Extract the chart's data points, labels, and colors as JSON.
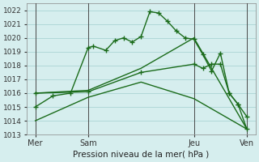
{
  "background_color": "#d6eeee",
  "grid_color": "#b0d8d8",
  "line_color": "#1a6b1a",
  "title": "Pression niveau de la mer( hPa )",
  "yticks": [
    1013,
    1014,
    1015,
    1016,
    1017,
    1018,
    1019,
    1020,
    1021,
    1022
  ],
  "ylim": [
    1013,
    1022.5
  ],
  "xtick_labels": [
    "Mer",
    "Sam",
    "Jeu",
    "Ven"
  ],
  "xtick_positions": [
    0,
    3,
    9,
    12
  ],
  "series1_x": [
    0,
    1,
    2,
    3,
    3.3,
    4,
    4.5,
    5,
    5.5,
    6,
    6.5,
    7,
    7.5,
    8,
    8.5,
    9,
    9.5,
    10,
    10.5,
    11,
    11.5,
    12
  ],
  "series1_y": [
    1015.0,
    1015.8,
    1016.0,
    1019.3,
    1019.4,
    1019.1,
    1019.8,
    1020.0,
    1019.7,
    1020.1,
    1021.9,
    1021.8,
    1021.2,
    1020.5,
    1020.0,
    1019.9,
    1018.8,
    1017.6,
    1018.9,
    1016.0,
    1015.2,
    1014.3
  ],
  "series2_x": [
    0,
    3,
    6,
    9,
    9.5,
    10,
    10.5,
    11,
    11.5,
    12
  ],
  "series2_y": [
    1016.0,
    1016.1,
    1017.5,
    1018.1,
    1017.8,
    1018.1,
    1018.1,
    1016.0,
    1015.2,
    1013.4
  ],
  "series3_x": [
    0,
    3,
    6,
    9,
    12
  ],
  "series3_y": [
    1016.0,
    1016.2,
    1017.8,
    1020.0,
    1013.4
  ],
  "series4_x": [
    0,
    3,
    6,
    9,
    12
  ],
  "series4_y": [
    1014.0,
    1015.7,
    1016.8,
    1015.6,
    1013.4
  ],
  "vline_positions": [
    0,
    3,
    9,
    12
  ]
}
